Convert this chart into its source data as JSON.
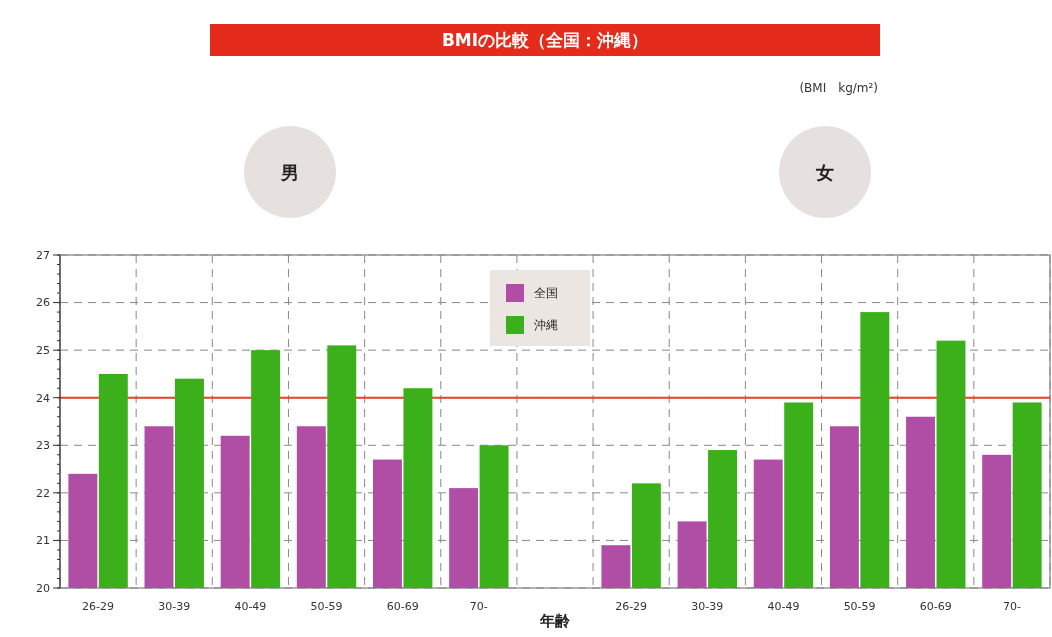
{
  "chart_data": {
    "type": "bar",
    "title": "BMIの比較（全国：沖縄）",
    "xlabel": "年齢",
    "annotations": [
      "(BMI　kg/m²)",
      "男",
      "女"
    ],
    "categories": [
      "26-29",
      "30-39",
      "40-49",
      "50-59",
      "60-69",
      "70-",
      null,
      "26-29",
      "30-39",
      "40-49",
      "50-59",
      "60-69",
      "70-"
    ],
    "series": [
      {
        "name": "全国",
        "color": "#b04ea6",
        "values": [
          22.4,
          23.4,
          23.2,
          23.4,
          22.7,
          22.1,
          null,
          20.9,
          21.4,
          22.7,
          23.4,
          23.6,
          22.8
        ]
      },
      {
        "name": "沖縄",
        "color": "#3cb01a",
        "values": [
          24.5,
          24.4,
          25.0,
          25.1,
          24.2,
          23.0,
          null,
          22.2,
          22.9,
          23.9,
          25.8,
          25.2,
          23.9
        ]
      }
    ],
    "ylim": [
      20,
      27
    ],
    "yticks": [
      20,
      21,
      22,
      23,
      24,
      25,
      26,
      27
    ],
    "grid": true,
    "legend": "top",
    "ref_lines": [
      {
        "axis": "y",
        "value": 24,
        "color": "#e8402a"
      }
    ]
  }
}
